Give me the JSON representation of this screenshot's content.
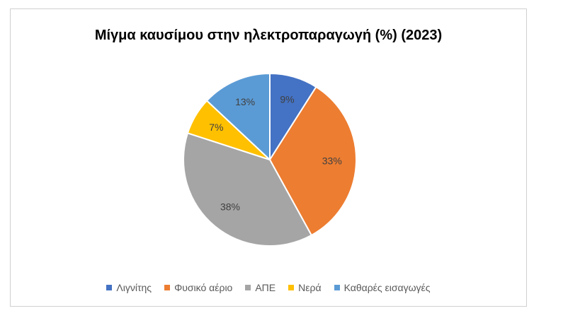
{
  "chart_data": {
    "type": "pie",
    "title": "Μίγμα καυσίμου στην ηλεκτροπαραγωγή (%) (2023)",
    "categories": [
      "Λιγνίτης",
      "Φυσικό αέριο",
      "ΑΠΕ",
      "Νερά",
      "Καθαρές εισαγωγές"
    ],
    "values": [
      9,
      33,
      38,
      7,
      13
    ],
    "data_labels": [
      "9%",
      "33%",
      "38%",
      "7%",
      "13%"
    ],
    "colors": [
      "#4472C4",
      "#ED7D31",
      "#A5A5A5",
      "#FFC000",
      "#5B9BD5"
    ],
    "legend_position": "bottom"
  }
}
